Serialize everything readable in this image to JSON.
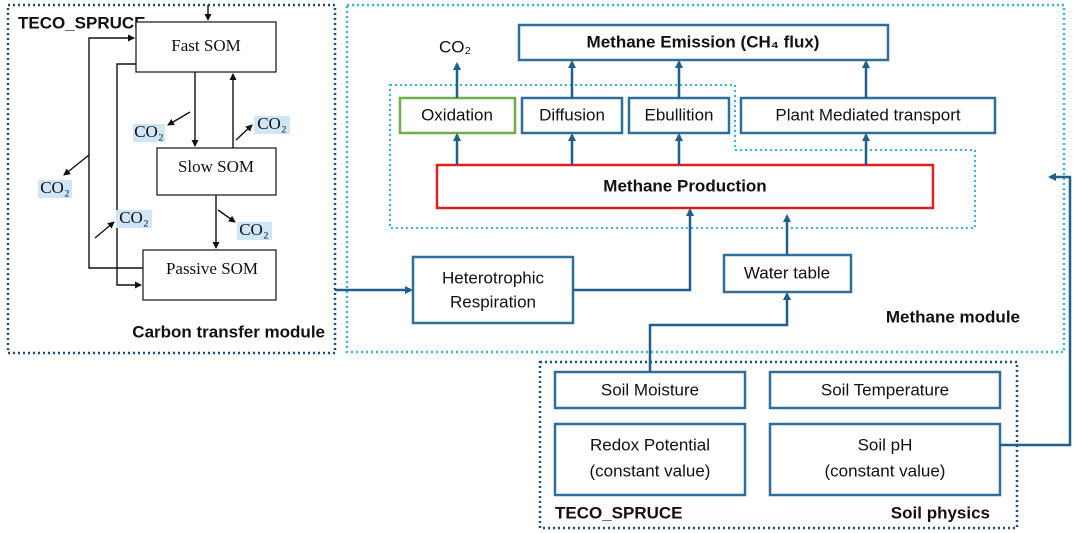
{
  "carbon_module": {
    "tag": "TECO_SPRUCE",
    "pools": [
      "Fast SOM",
      "Slow SOM",
      "Passive SOM"
    ],
    "co2_labels": [
      "CO₂",
      "CO₂",
      "CO₂",
      "CO₂",
      "CO₂"
    ],
    "title": "Carbon transfer module"
  },
  "methane_module": {
    "co2": "CO₂",
    "emission": "Methane Emission (CH₄ flux)",
    "pathways": [
      "Oxidation",
      "Diffusion",
      "Ebullition",
      "Plant Mediated transport"
    ],
    "production": "Methane Production",
    "respiration": [
      "Heterotrophic",
      "Respiration"
    ],
    "water_table": "Water table",
    "title": "Methane module"
  },
  "soil_physics": {
    "moisture": "Soil Moisture",
    "temperature": "Soil Temperature",
    "redox": [
      "Redox Potential",
      "(constant value)"
    ],
    "ph": [
      "Soil pH",
      "(constant value)"
    ],
    "tag": "TECO_SPRUCE",
    "title": "Soil physics"
  }
}
